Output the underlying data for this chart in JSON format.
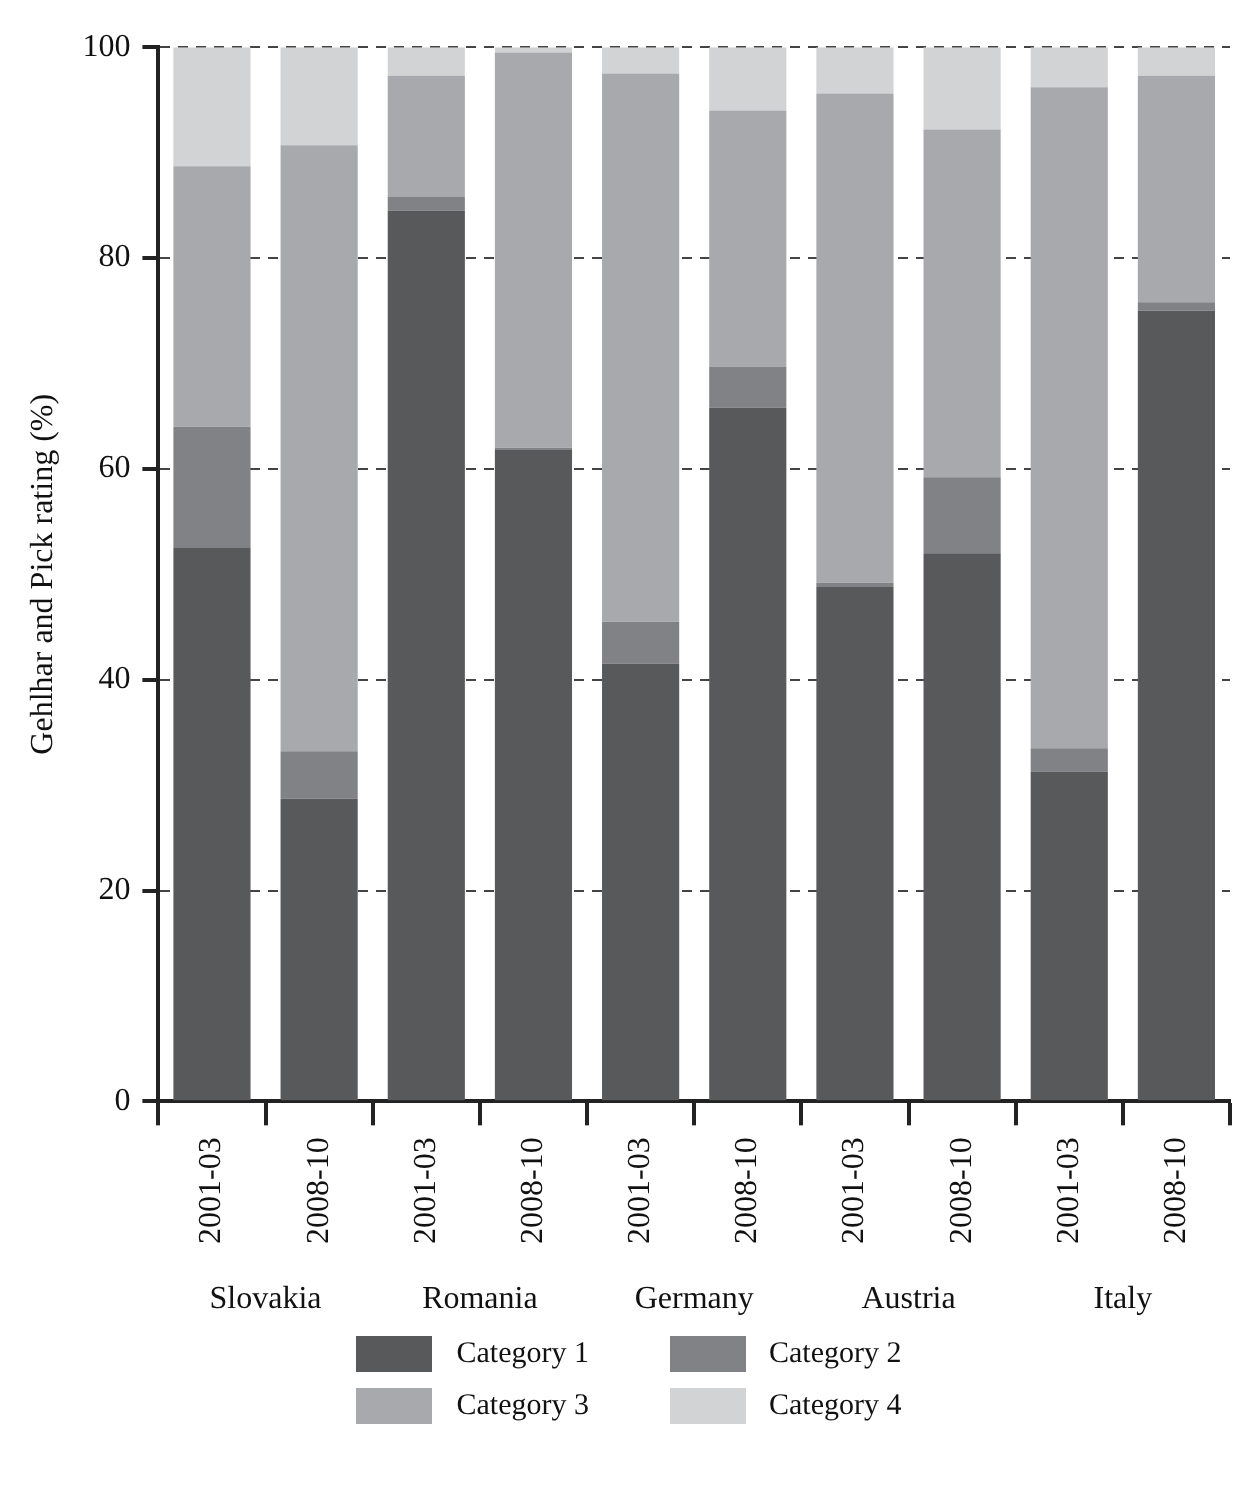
{
  "chart_data": {
    "type": "bar",
    "stacked": true,
    "ylabel": "Gehlhar and Pick rating (%)",
    "categories": [
      "2001-03",
      "2008-10",
      "2001-03",
      "2008-10",
      "2001-03",
      "2008-10",
      "2001-03",
      "2008-10",
      "2001-03",
      "2008-10"
    ],
    "annotations": [
      "Slovakia",
      "Romania",
      "Germany",
      "Austria",
      "Italy"
    ],
    "series": [
      {
        "name": "Category 1",
        "color": "#58595b",
        "values": [
          52.5,
          28.7,
          84.5,
          61.8,
          41.5,
          65.8,
          48.8,
          52,
          31.3,
          75
        ]
      },
      {
        "name": "Category 2",
        "color": "#808285",
        "values": [
          11.5,
          4.5,
          1.3,
          0.2,
          4,
          3.9,
          0.4,
          7.2,
          2.2,
          0.8
        ]
      },
      {
        "name": "Category 3",
        "color": "#a7a9ac",
        "values": [
          24.7,
          57.5,
          11.5,
          37.5,
          52,
          24.3,
          46.4,
          33,
          62.7,
          21.5
        ]
      },
      {
        "name": "Category 4",
        "color": "#d1d3d4",
        "values": [
          11.3,
          9.3,
          2.7,
          0.5,
          2.5,
          6,
          4.4,
          7.8,
          3.8,
          2.7
        ]
      }
    ],
    "ylim": [
      0,
      100
    ],
    "yticks": [
      0,
      20,
      40,
      60,
      80,
      100
    ],
    "grid": "y",
    "legend": "bottom"
  }
}
